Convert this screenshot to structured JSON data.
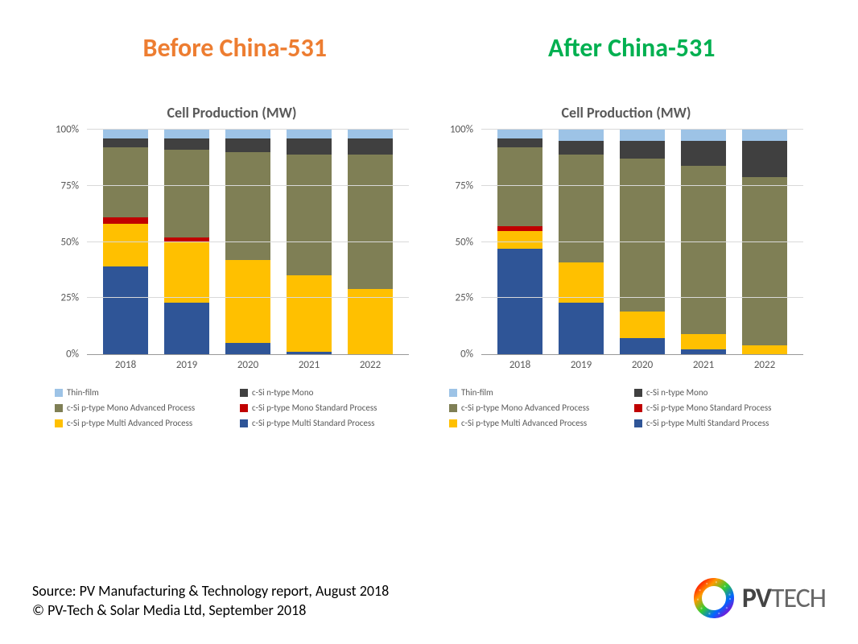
{
  "header_left": "Before China-531",
  "header_right": "After China-531",
  "header_left_color": "#ed7d31",
  "header_right_color": "#00b050",
  "chart_title": "Cell Production (MW)",
  "y_axis": {
    "min": 0,
    "max": 100,
    "step": 25,
    "ticks": [
      "0%",
      "25%",
      "50%",
      "75%",
      "100%"
    ]
  },
  "categories": [
    "2018",
    "2019",
    "2020",
    "2021",
    "2022"
  ],
  "series": [
    {
      "name": "c-Si p-type Multi Standard Process",
      "color": "#2f5597"
    },
    {
      "name": "c-Si p-type Multi Advanced Process",
      "color": "#ffc000"
    },
    {
      "name": "c-Si p-type Mono Standard Process",
      "color": "#c00000"
    },
    {
      "name": "c-Si p-type Mono Advanced Process",
      "color": "#7f7f55"
    },
    {
      "name": "c-Si n-type Mono",
      "color": "#404040"
    },
    {
      "name": "Thin-film",
      "color": "#9dc3e6"
    }
  ],
  "legend_order": [
    {
      "name": "Thin-film",
      "color": "#9dc3e6"
    },
    {
      "name": "c-Si n-type Mono",
      "color": "#404040"
    },
    {
      "name": "c-Si p-type Mono Advanced Process",
      "color": "#7f7f55"
    },
    {
      "name": "c-Si p-type Mono Standard Process",
      "color": "#c00000"
    },
    {
      "name": "c-Si p-type Multi Advanced Process",
      "color": "#ffc000"
    },
    {
      "name": "c-Si p-type Multi Standard Process",
      "color": "#2f5597"
    }
  ],
  "before_data": [
    [
      39,
      19,
      3,
      31,
      4,
      4
    ],
    [
      23,
      27,
      2,
      39,
      5,
      4
    ],
    [
      5,
      37,
      0,
      48,
      6,
      4
    ],
    [
      1,
      34,
      0,
      54,
      7,
      4
    ],
    [
      0,
      29,
      0,
      60,
      7,
      4
    ]
  ],
  "after_data": [
    [
      47,
      8,
      2,
      35,
      4,
      4
    ],
    [
      23,
      18,
      0,
      48,
      6,
      5
    ],
    [
      7,
      12,
      0,
      68,
      8,
      5
    ],
    [
      2,
      7,
      0,
      75,
      11,
      5
    ],
    [
      0,
      4,
      0,
      75,
      16,
      5
    ]
  ],
  "background_color": "#ffffff",
  "grid_color": "#d9d9d9",
  "axis_font_size": 13,
  "title_font_size": 18,
  "header_font_size": 32,
  "legend_font_size": 11,
  "bar_width_ratio": 0.7,
  "source_line1": "Source: PV Manufacturing & Technology report, August 2018",
  "source_line2": "© PV-Tech & Solar Media Ltd, September 2018",
  "logo_text_pv": "PV",
  "logo_text_tech": "TECH"
}
